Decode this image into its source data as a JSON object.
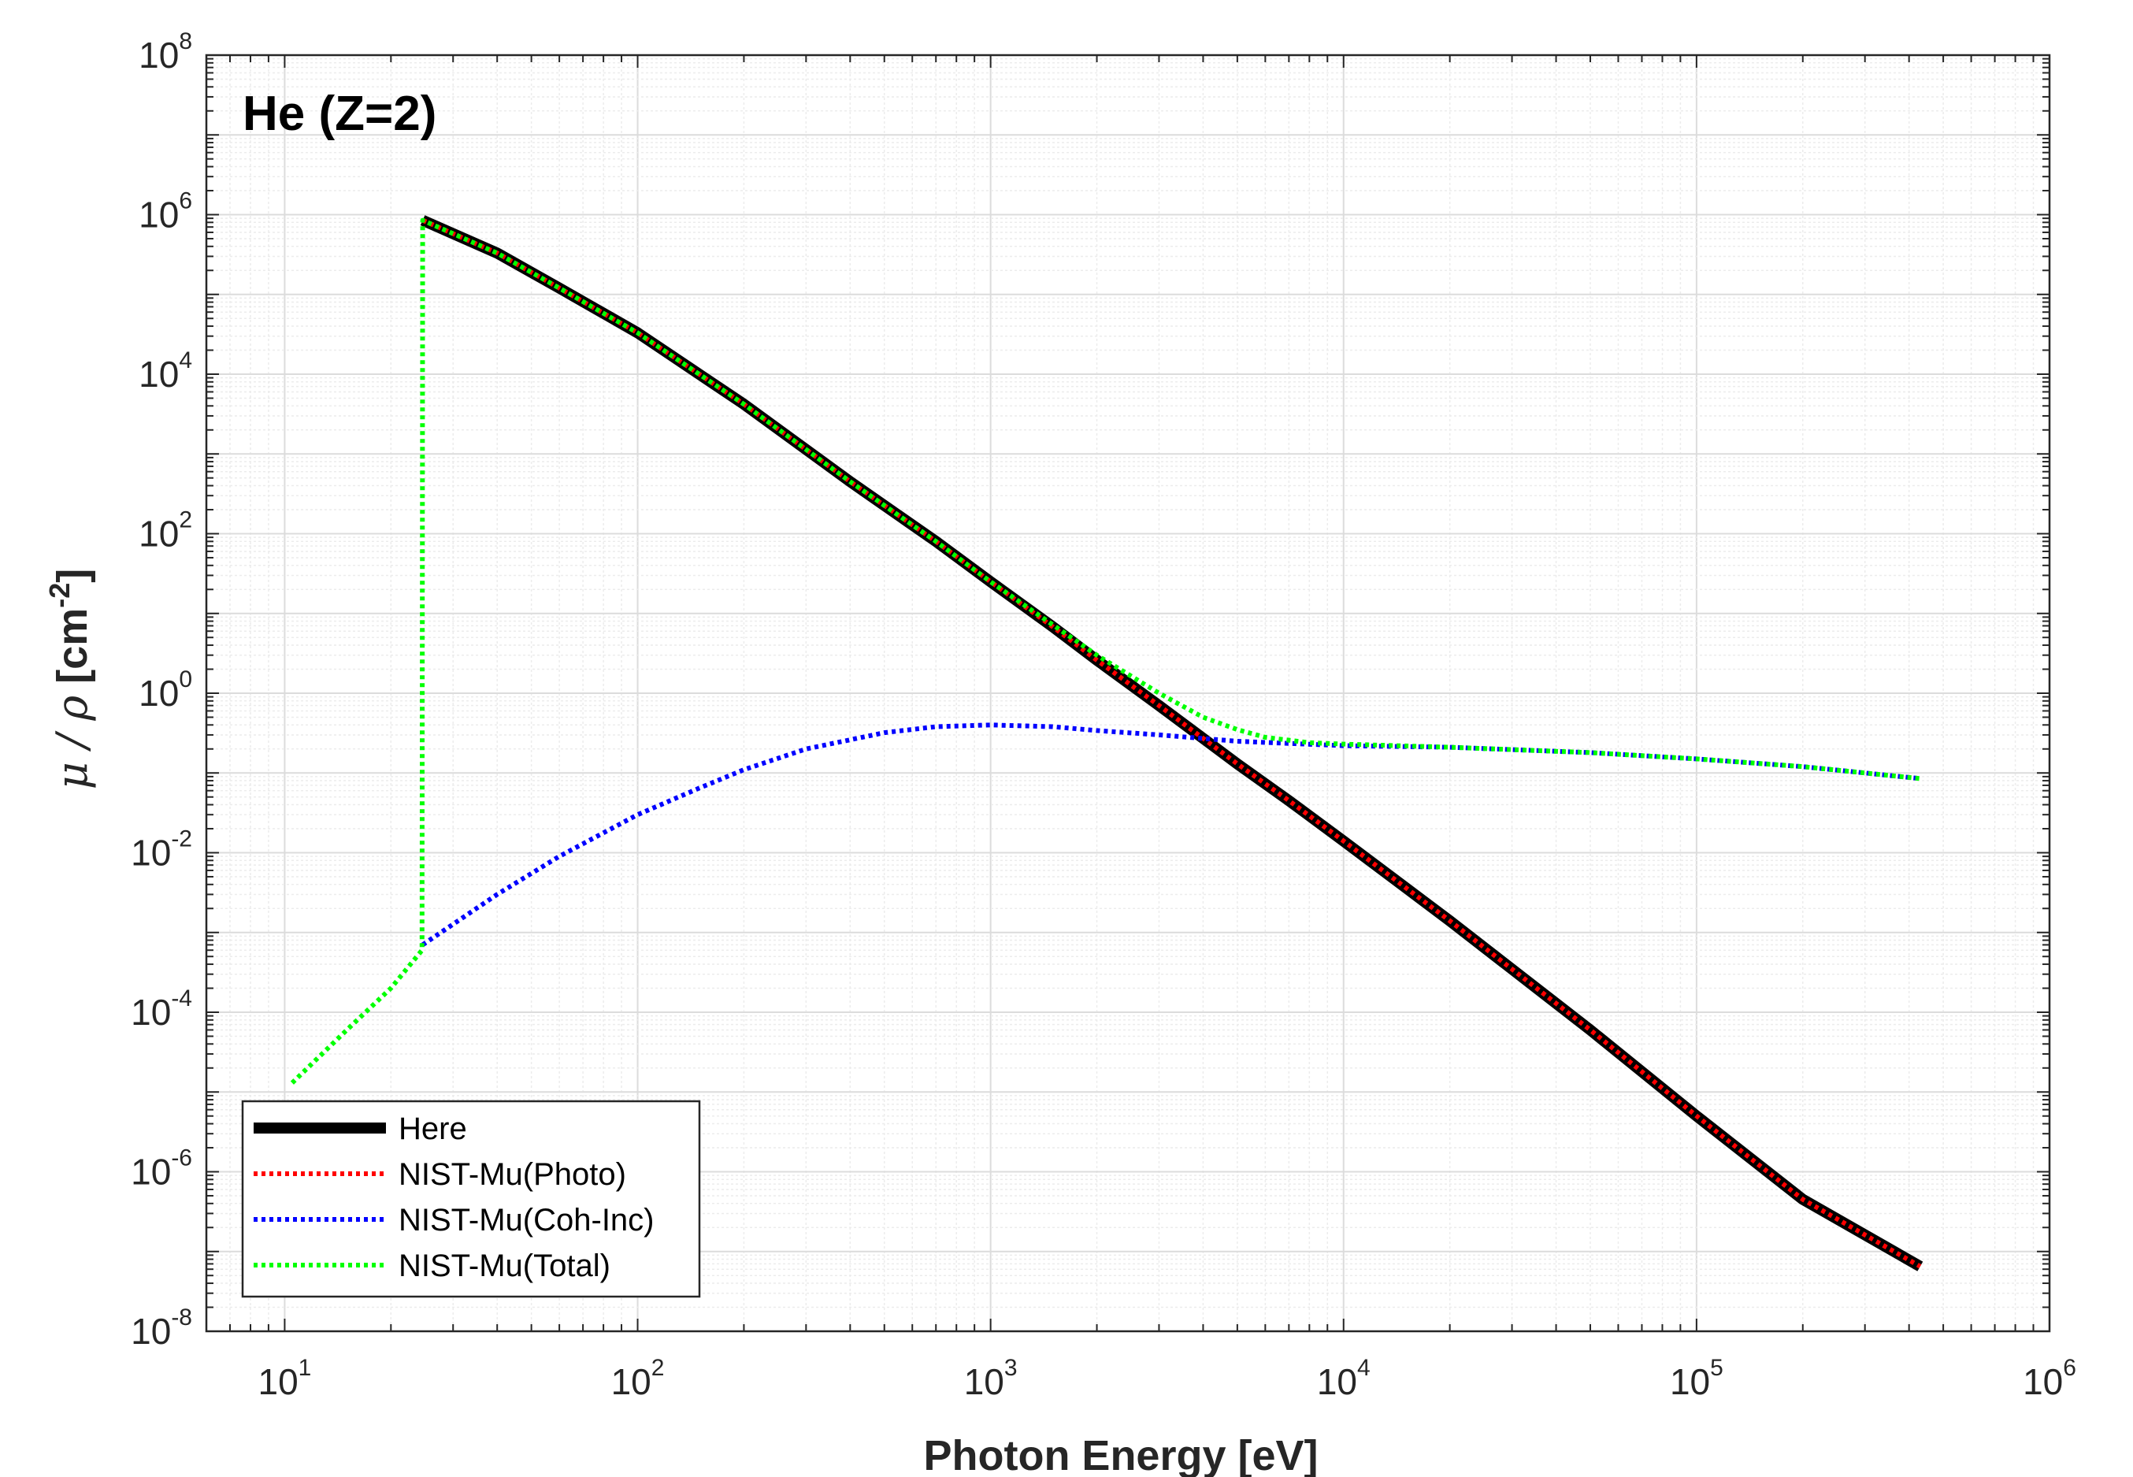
{
  "chart_data": {
    "type": "line",
    "title": "He (Z=2)",
    "xlabel": "Photon Energy [eV]",
    "ylabel_symbol_mu": "μ",
    "ylabel_slash": " / ",
    "ylabel_symbol_rho": "ρ",
    "ylabel_unit": " [cm",
    "ylabel_unit_exp": "-2",
    "ylabel_unit_close": "]",
    "xscale": "log",
    "yscale": "log",
    "xlim": [
      6,
      1000000
    ],
    "ylim": [
      1e-08,
      100000000
    ],
    "grid": true,
    "legend_location": "bottom-left",
    "x_ticks": [
      {
        "base": "10",
        "exp": "1",
        "value": 10
      },
      {
        "base": "10",
        "exp": "2",
        "value": 100
      },
      {
        "base": "10",
        "exp": "3",
        "value": 1000
      },
      {
        "base": "10",
        "exp": "4",
        "value": 10000
      },
      {
        "base": "10",
        "exp": "5",
        "value": 100000
      },
      {
        "base": "10",
        "exp": "6",
        "value": 1000000
      }
    ],
    "y_ticks": [
      {
        "base": "10",
        "exp": "-8",
        "value": 1e-08
      },
      {
        "base": "10",
        "exp": "-6",
        "value": 1e-06
      },
      {
        "base": "10",
        "exp": "-4",
        "value": 0.0001
      },
      {
        "base": "10",
        "exp": "-2",
        "value": 0.01
      },
      {
        "base": "10",
        "exp": "0",
        "value": 1
      },
      {
        "base": "10",
        "exp": "2",
        "value": 100
      },
      {
        "base": "10",
        "exp": "4",
        "value": 10000
      },
      {
        "base": "10",
        "exp": "6",
        "value": 1000000
      },
      {
        "base": "10",
        "exp": "8",
        "value": 100000000
      }
    ],
    "series": [
      {
        "name": "Here",
        "color": "#000000",
        "style": "solid",
        "x": [
          24.6,
          40,
          60,
          100,
          200,
          400,
          700,
          1000,
          1500,
          2000,
          3000,
          5000,
          7000,
          10000,
          20000,
          50000,
          100000,
          200000,
          430000
        ],
        "y": [
          850000,
          330000,
          120000,
          33000,
          4200,
          450,
          80,
          25,
          6.8,
          2.6,
          0.7,
          0.13,
          0.045,
          0.014,
          0.0014,
          6e-05,
          5e-06,
          4.5e-07,
          6.5e-08
        ]
      },
      {
        "name": "NIST-Mu(Photo)",
        "color": "#ff0000",
        "style": "dotted",
        "x": [
          24.6,
          40,
          60,
          100,
          200,
          400,
          700,
          1000,
          1500,
          2000,
          3000,
          5000,
          7000,
          10000,
          20000,
          50000,
          100000,
          200000,
          430000
        ],
        "y": [
          850000,
          330000,
          120000,
          33000,
          4200,
          450,
          80,
          25,
          6.8,
          2.6,
          0.7,
          0.13,
          0.045,
          0.014,
          0.0014,
          6e-05,
          5e-06,
          4.5e-07,
          6.5e-08
        ]
      },
      {
        "name": "NIST-Mu(Coh-Inc)",
        "color": "#0000ff",
        "style": "dotted",
        "x": [
          24.6,
          40,
          60,
          100,
          150,
          200,
          300,
          500,
          700,
          1000,
          1500,
          2000,
          3000,
          5000,
          10000,
          20000,
          50000,
          100000,
          200000,
          430000
        ],
        "y": [
          0.0007,
          0.003,
          0.009,
          0.03,
          0.065,
          0.11,
          0.2,
          0.32,
          0.38,
          0.4,
          0.38,
          0.34,
          0.3,
          0.25,
          0.22,
          0.21,
          0.18,
          0.15,
          0.12,
          0.085
        ]
      },
      {
        "name": "NIST-Mu(Total)",
        "color": "#00ff00",
        "style": "dotted",
        "x": [
          10.5,
          15,
          20,
          24.5,
          24.6,
          40,
          60,
          100,
          200,
          400,
          700,
          1000,
          1500,
          2000,
          3000,
          4000,
          5000,
          6000,
          8000,
          10000,
          20000,
          50000,
          100000,
          200000,
          430000
        ],
        "y": [
          1.3e-05,
          6e-05,
          0.0002,
          0.0006,
          850000,
          330000,
          120000,
          33000,
          4200,
          450,
          80,
          25,
          7.2,
          3.0,
          1.0,
          0.5,
          0.35,
          0.28,
          0.24,
          0.23,
          0.21,
          0.18,
          0.15,
          0.12,
          0.085
        ]
      }
    ]
  }
}
